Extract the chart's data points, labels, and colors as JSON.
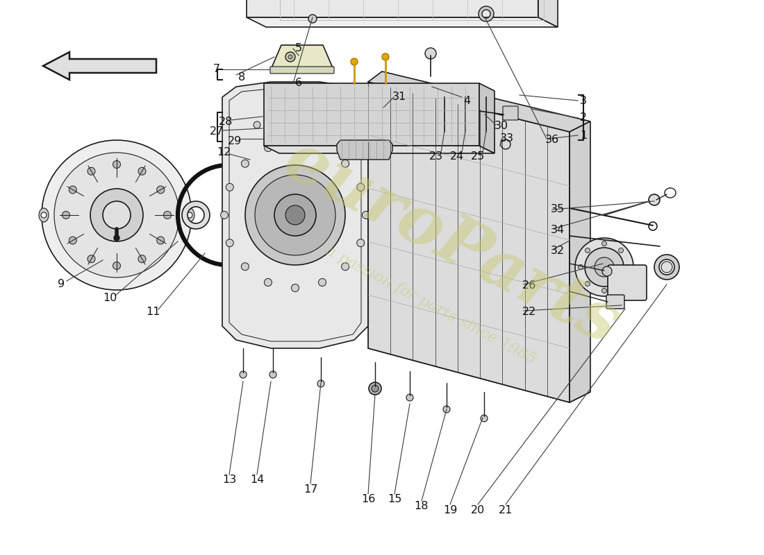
{
  "background_color": "#ffffff",
  "watermark_text1": "euroParts",
  "watermark_text2": "a passion for parts since 1985",
  "watermark_color": "#c8c870",
  "watermark_alpha": 0.45,
  "line_color": "#1a1a1a",
  "gray_fill": "#d8d8d8",
  "light_fill": "#eeeeee",
  "mid_fill": "#cccccc"
}
